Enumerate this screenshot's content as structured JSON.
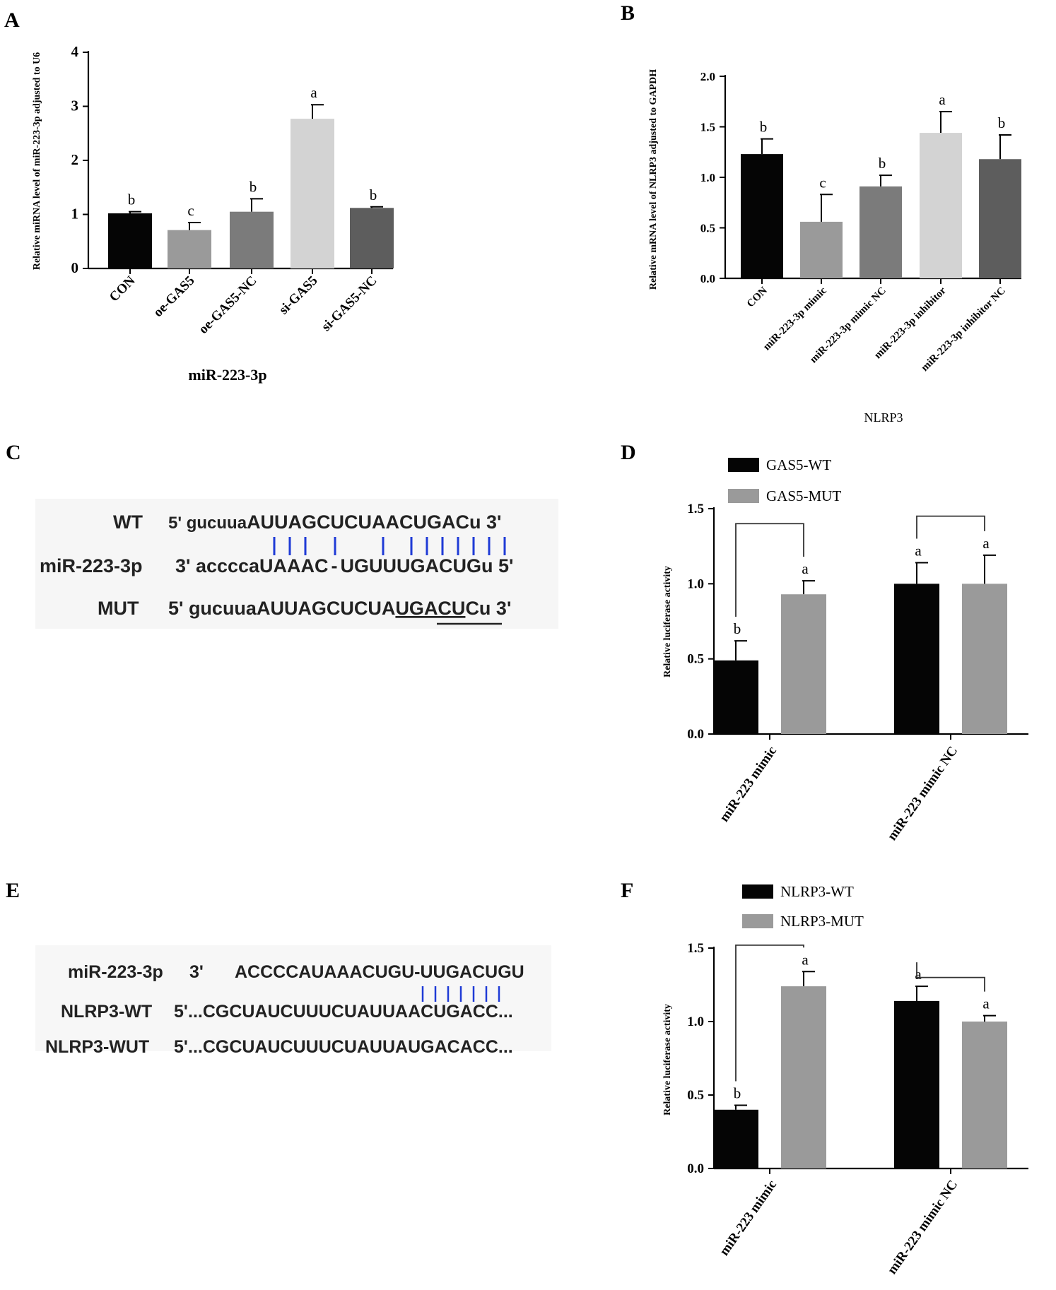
{
  "panels": {
    "A": {
      "letter": "A"
    },
    "B": {
      "letter": "B"
    },
    "C": {
      "letter": "C"
    },
    "D": {
      "letter": "D"
    },
    "E": {
      "letter": "E"
    },
    "F": {
      "letter": "F"
    }
  },
  "colors": {
    "black": "#050505",
    "gray1": "#9a9a9a",
    "gray2": "#7b7b7b",
    "light": "#d3d3d3",
    "dark": "#5d5d5d",
    "pairing": "#1f3bd6"
  },
  "chart_data": [
    {
      "id": "A",
      "type": "bar",
      "title": "",
      "xlabel": "miR-223-3p",
      "ylabel": "Relative miRNA level of miR-223-3p adjusted to U6",
      "ylim": [
        0,
        4
      ],
      "yticks": [
        "0",
        "1",
        "2",
        "3",
        "4"
      ],
      "categories": [
        "CON",
        "oe-GAS5",
        "oe-GAS5-NC",
        "si-GAS5",
        "si-GAS5-NC"
      ],
      "values": [
        1.02,
        0.71,
        1.05,
        2.77,
        1.12
      ],
      "errors": [
        0.03,
        0.14,
        0.24,
        0.26,
        0.02
      ],
      "letters": [
        "b",
        "c",
        "b",
        "a",
        "b"
      ],
      "colors": [
        "#050505",
        "#9a9a9a",
        "#7b7b7b",
        "#d3d3d3",
        "#5d5d5d"
      ]
    },
    {
      "id": "B",
      "type": "bar",
      "title": "",
      "xlabel": "NLRP3",
      "ylabel": "Relative mRNA level of NLRP3 adjusted to GAPDH",
      "ylim": [
        0,
        2.0
      ],
      "yticks": [
        "0.0",
        "0.5",
        "1.0",
        "1.5",
        "2.0"
      ],
      "categories": [
        "CON",
        "miR-223-3p mimic",
        "miR-223-3p mimic NC",
        "miR-223-3p inhibitor",
        "miR-223-3p inhibitor NC"
      ],
      "values": [
        1.23,
        0.56,
        0.91,
        1.44,
        1.18
      ],
      "errors": [
        0.15,
        0.27,
        0.11,
        0.21,
        0.24
      ],
      "letters": [
        "b",
        "c",
        "b",
        "a",
        "b"
      ],
      "colors": [
        "#050505",
        "#9a9a9a",
        "#7b7b7b",
        "#d3d3d3",
        "#5d5d5d"
      ]
    },
    {
      "id": "D",
      "type": "bar",
      "title": "",
      "xlabel": "",
      "ylabel": "Relative luciferase activity",
      "ylim": [
        0,
        1.5
      ],
      "yticks": [
        "0.0",
        "0.5",
        "1.0",
        "1.5"
      ],
      "categories": [
        "miR-223 mimic",
        "miR-223 mimic NC"
      ],
      "legend": "top-left",
      "series": [
        {
          "name": "GAS5-WT",
          "color": "#050505",
          "values": [
            0.49,
            1.0
          ],
          "errors": [
            0.13,
            0.14
          ],
          "letters": [
            "b",
            "a"
          ]
        },
        {
          "name": "GAS5-MUT",
          "color": "#9a9a9a",
          "values": [
            0.93,
            1.0
          ],
          "errors": [
            0.09,
            0.19
          ],
          "letters": [
            "a",
            "a"
          ]
        }
      ]
    },
    {
      "id": "F",
      "type": "bar",
      "title": "",
      "xlabel": "",
      "ylabel": "Relative luciferase activity",
      "ylim": [
        0,
        1.5
      ],
      "yticks": [
        "0.0",
        "0.5",
        "1.0",
        "1.5"
      ],
      "categories": [
        "miR-223 mimic",
        "miR-223 mimic NC"
      ],
      "legend": "top-left",
      "series": [
        {
          "name": "NLRP3-WT",
          "color": "#050505",
          "values": [
            0.4,
            1.14
          ],
          "errors": [
            0.03,
            0.1
          ],
          "letters": [
            "b",
            "a"
          ]
        },
        {
          "name": "NLRP3-MUT",
          "color": "#9a9a9a",
          "values": [
            1.24,
            1.0
          ],
          "errors": [
            0.1,
            0.04
          ],
          "letters": [
            "a",
            "a"
          ]
        }
      ]
    }
  ],
  "sequences": {
    "C": {
      "wt_label": "WT",
      "wt_prefix": "5' gucuua",
      "wt_core": "AUUAGCUCUAACUGACu 3'",
      "mir_label": "miR-223-3p",
      "mir_prefix": "3' accccaUAAAC",
      "mir_dash": "-",
      "mir_core": "UGUUUGACUGu 5'",
      "mut_label": "MUT",
      "mut_prefix": "5' gucuuaAUUAGCUCUA",
      "mut_mutated": "UGACU",
      "mut_suffix": "Cu 3'"
    },
    "E": {
      "mir_label": "miR-223-3p",
      "mir_end": "3'",
      "mir_seq": "ACCCCAUAAACUGU-UUGACUGU",
      "wt_label": "NLRP3-WT",
      "wt_end": "5'",
      "wt_seq": "...CGCUAUCUUUCUAUUAACUGACC...",
      "mut_label": "NLRP3-WUT",
      "mut_end": "5'",
      "mut_seq": "...CGCUAUCUUUCUAUUAUGACACC..."
    }
  }
}
